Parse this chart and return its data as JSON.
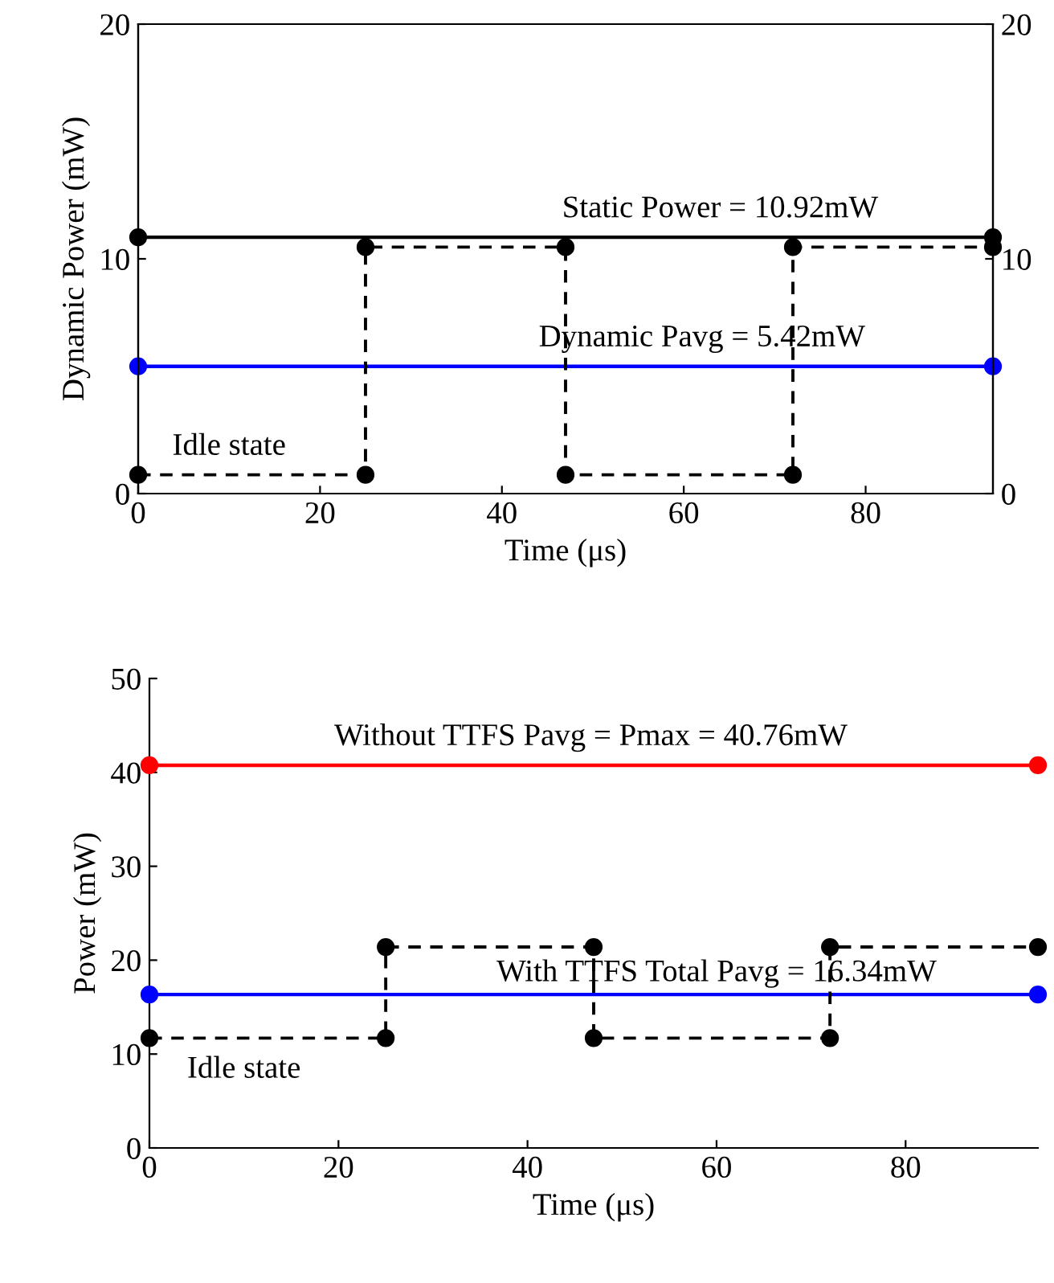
{
  "chart_data": [
    {
      "type": "line",
      "xlabel": "Time (μs)",
      "ylabel": "Dynamic Power (mW)",
      "xlim": [
        0,
        94
      ],
      "xticks": [
        0,
        20,
        40,
        60,
        80
      ],
      "ylim": [
        0,
        20
      ],
      "yticks": [
        0,
        10,
        20
      ],
      "y2lim": [
        0,
        20
      ],
      "y2ticks": [
        0,
        10,
        20
      ],
      "grid": false,
      "marker": "circle",
      "series": [
        {
          "color": "#000000",
          "x": [
            0,
            94
          ],
          "values": [
            10.92,
            10.92
          ],
          "line_style": "solid"
        },
        {
          "color": "#0000ff",
          "x": [
            0,
            94
          ],
          "values": [
            5.42,
            5.42
          ],
          "line_style": "solid"
        },
        {
          "color": "#000000",
          "x": [
            0,
            25,
            25,
            47,
            47,
            72,
            72,
            94
          ],
          "values": [
            0.8,
            0.8,
            10.5,
            10.5,
            0.8,
            0.8,
            10.5,
            10.5
          ],
          "line_style": "dashed"
        }
      ],
      "annotations": [
        {
          "text": "Static Power = 10.92mW",
          "x": 64,
          "y": 10.92
        },
        {
          "text": "Dynamic Pavg = 5.42mW",
          "x": 62,
          "y": 5.42
        },
        {
          "text": "Idle state",
          "x": 10,
          "y": 0.8
        }
      ]
    },
    {
      "type": "line",
      "xlabel": "Time (μs)",
      "ylabel": "Power (mW)",
      "xlim": [
        0,
        94
      ],
      "xticks": [
        0,
        20,
        40,
        60,
        80
      ],
      "ylim": [
        0,
        50
      ],
      "yticks": [
        0,
        10,
        20,
        30,
        40,
        50
      ],
      "grid": false,
      "marker": "circle",
      "series": [
        {
          "color": "#ff0000",
          "x": [
            0,
            94
          ],
          "values": [
            40.76,
            40.76
          ],
          "line_style": "solid"
        },
        {
          "color": "#0000ff",
          "x": [
            0,
            94
          ],
          "values": [
            16.34,
            16.34
          ],
          "line_style": "solid"
        },
        {
          "color": "#000000",
          "x": [
            0,
            25,
            25,
            47,
            47,
            72,
            72,
            94
          ],
          "values": [
            11.7,
            11.7,
            21.4,
            21.4,
            11.7,
            11.7,
            21.4,
            21.4
          ],
          "line_style": "dashed"
        }
      ],
      "annotations": [
        {
          "text": "Without TTFS Pavg = Pmax = 40.76mW",
          "x": 46.7,
          "y": 40.76
        },
        {
          "text": "With TTFS Total Pavg = 16.34mW",
          "x": 60,
          "y": 16.34
        },
        {
          "text": "Idle state",
          "x": 10,
          "y": 11.7
        }
      ]
    }
  ]
}
